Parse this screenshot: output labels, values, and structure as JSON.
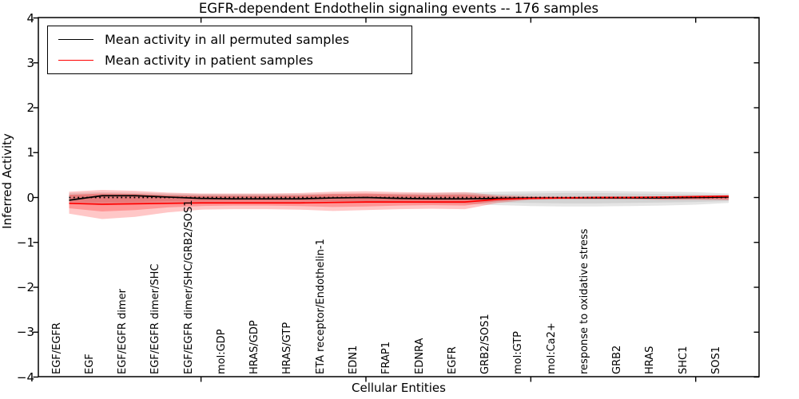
{
  "chart_data": {
    "type": "line",
    "title": "EGFR-dependent Endothelin signaling events -- 176 samples",
    "xlabel": "Cellular Entities",
    "ylabel": "Inferred Activity",
    "ylim": [
      -4,
      4
    ],
    "ytick_labels": [
      "4",
      "3",
      "2",
      "1",
      "0",
      "−1",
      "−2",
      "−3",
      "−4"
    ],
    "ytick_values": [
      4,
      3,
      2,
      1,
      0,
      -1,
      -2,
      -3,
      -4
    ],
    "x_major_tick_indices": [
      4,
      9,
      14,
      19
    ],
    "grid": false,
    "legend_position": "upper left",
    "categories": [
      "EGF/EGFR",
      "EGF",
      "EGF/EGFR dimer",
      "EGF/EGFR dimer/SHC",
      "EGF/EGFR dimer/SHC/GRB2/SOS1",
      "mol:GDP",
      "HRAS/GDP",
      "HRAS/GTP",
      "ETA receptor/Endothelin-1",
      "EDN1",
      "FRAP1",
      "EDNRA",
      "EGFR",
      "GRB2/SOS1",
      "mol:GTP",
      "mol:Ca2+",
      "response to oxidative stress",
      "GRB2",
      "HRAS",
      "SHC1",
      "SOS1"
    ],
    "series": [
      {
        "name": "Mean activity in all permuted samples",
        "color": "#000000",
        "values": [
          -0.06,
          0.04,
          0.04,
          0.01,
          -0.02,
          -0.03,
          -0.03,
          -0.03,
          -0.01,
          0.0,
          -0.02,
          -0.03,
          -0.03,
          -0.02,
          -0.01,
          -0.01,
          -0.01,
          -0.01,
          -0.01,
          0.0,
          0.01
        ]
      },
      {
        "name": "Mean activity in patient samples",
        "color": "#ff0000",
        "values": [
          -0.13,
          -0.15,
          -0.14,
          -0.13,
          -0.12,
          -0.12,
          -0.12,
          -0.12,
          -0.11,
          -0.1,
          -0.1,
          -0.1,
          -0.1,
          -0.04,
          -0.02,
          -0.01,
          0.0,
          0.0,
          0.01,
          0.02,
          0.03
        ]
      }
    ],
    "zero_line": {
      "value": 0,
      "style": "dotted",
      "color": "#000000"
    },
    "bands": [
      {
        "name": "permuted-band-outer",
        "color": "#000000",
        "opacity": 0.1,
        "top": [
          0.1,
          0.12,
          0.11,
          0.09,
          0.08,
          0.08,
          0.08,
          0.08,
          0.09,
          0.09,
          0.09,
          0.1,
          0.11,
          0.13,
          0.14,
          0.15,
          0.15,
          0.14,
          0.13,
          0.12,
          0.09
        ],
        "bottom": [
          -0.14,
          -0.17,
          -0.15,
          -0.12,
          -0.11,
          -0.11,
          -0.11,
          -0.11,
          -0.12,
          -0.12,
          -0.12,
          -0.13,
          -0.14,
          -0.17,
          -0.19,
          -0.2,
          -0.2,
          -0.19,
          -0.18,
          -0.16,
          -0.12
        ]
      },
      {
        "name": "permuted-band-inner",
        "color": "#000000",
        "opacity": 0.08,
        "top": [
          0.06,
          0.07,
          0.07,
          0.06,
          0.05,
          0.05,
          0.05,
          0.05,
          0.06,
          0.06,
          0.06,
          0.06,
          0.07,
          0.08,
          0.09,
          0.1,
          0.1,
          0.09,
          0.08,
          0.07,
          0.06
        ],
        "bottom": [
          -0.09,
          -0.11,
          -0.1,
          -0.08,
          -0.07,
          -0.07,
          -0.07,
          -0.07,
          -0.08,
          -0.08,
          -0.08,
          -0.08,
          -0.09,
          -0.11,
          -0.12,
          -0.13,
          -0.13,
          -0.12,
          -0.11,
          -0.1,
          -0.08
        ]
      },
      {
        "name": "patient-band-outer",
        "color": "#ff0000",
        "opacity": 0.22,
        "top": [
          0.13,
          0.17,
          0.15,
          0.11,
          0.09,
          0.09,
          0.09,
          0.1,
          0.13,
          0.14,
          0.12,
          0.11,
          0.12,
          0.05,
          0.03,
          0.03,
          0.03,
          0.03,
          0.03,
          0.04,
          0.05
        ],
        "bottom": [
          -0.36,
          -0.48,
          -0.43,
          -0.33,
          -0.27,
          -0.26,
          -0.26,
          -0.27,
          -0.3,
          -0.28,
          -0.26,
          -0.25,
          -0.26,
          -0.12,
          -0.05,
          -0.04,
          -0.04,
          -0.04,
          -0.05,
          -0.05,
          -0.06
        ]
      },
      {
        "name": "patient-band-inner",
        "color": "#ff0000",
        "opacity": 0.25,
        "top": [
          0.06,
          0.09,
          0.08,
          0.05,
          0.04,
          0.04,
          0.04,
          0.05,
          0.08,
          0.09,
          0.07,
          0.06,
          0.07,
          0.02,
          0.01,
          0.01,
          0.01,
          0.01,
          0.01,
          0.02,
          0.02
        ],
        "bottom": [
          -0.24,
          -0.31,
          -0.28,
          -0.22,
          -0.19,
          -0.18,
          -0.18,
          -0.19,
          -0.21,
          -0.2,
          -0.18,
          -0.17,
          -0.18,
          -0.08,
          -0.03,
          -0.02,
          -0.02,
          -0.02,
          -0.03,
          -0.03,
          -0.04
        ]
      }
    ]
  }
}
